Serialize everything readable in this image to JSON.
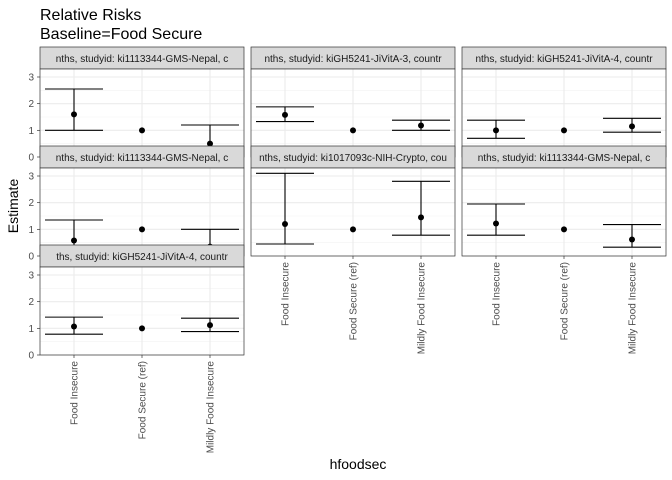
{
  "title": "Relative Risks",
  "subtitle": "Baseline=Food Secure",
  "chart_data": {
    "type": "scatter",
    "title": "Relative Risks",
    "subtitle": "Baseline=Food Secure",
    "xlabel": "hfoodsec",
    "ylabel": "Estimate",
    "categories": [
      "Food Insecure",
      "Food Secure (ref)",
      "Mildly Food Insecure"
    ],
    "ylim": [
      0,
      3.3
    ],
    "yticks": [
      0,
      1,
      2,
      3
    ],
    "grid": true,
    "layout": "facet grid, 3 columns, 7 panels",
    "panels": [
      {
        "label": "nths, studyid: ki1113344-GMS-Nepal, c",
        "estimate": [
          1.6,
          1.0,
          0.5
        ],
        "lower": [
          1.0,
          null,
          0.2
        ],
        "upper": [
          2.55,
          null,
          1.2
        ]
      },
      {
        "label": "nths, studyid: kiGH5241-JiVitA-3, countr",
        "estimate": [
          1.58,
          1.0,
          1.18
        ],
        "lower": [
          1.33,
          null,
          1.0
        ],
        "upper": [
          1.88,
          null,
          1.38
        ]
      },
      {
        "label": "nths, studyid: kiGH5241-JiVitA-4, countr",
        "estimate": [
          1.0,
          1.0,
          1.15
        ],
        "lower": [
          0.7,
          null,
          0.93
        ],
        "upper": [
          1.38,
          null,
          1.45
        ]
      },
      {
        "label": "nths, studyid: ki1113344-GMS-Nepal, c",
        "estimate": [
          0.58,
          1.0,
          0.35
        ],
        "lower": [
          0.28,
          null,
          0.13
        ],
        "upper": [
          1.35,
          null,
          1.0
        ]
      },
      {
        "label": "nths, studyid: ki1017093c-NIH-Crypto, cou",
        "estimate": [
          1.2,
          1.0,
          1.45
        ],
        "lower": [
          0.45,
          null,
          0.78
        ],
        "upper": [
          3.1,
          null,
          2.8
        ]
      },
      {
        "label": "nths, studyid: ki1113344-GMS-Nepal, c",
        "estimate": [
          1.22,
          1.0,
          0.62
        ],
        "lower": [
          0.78,
          null,
          0.33
        ],
        "upper": [
          1.95,
          null,
          1.18
        ]
      },
      {
        "label": "ths, studyid: kiGH5241-JiVitA-4, countr",
        "estimate": [
          1.07,
          1.0,
          1.12
        ],
        "lower": [
          0.78,
          null,
          0.88
        ],
        "upper": [
          1.42,
          null,
          1.38
        ]
      }
    ]
  }
}
